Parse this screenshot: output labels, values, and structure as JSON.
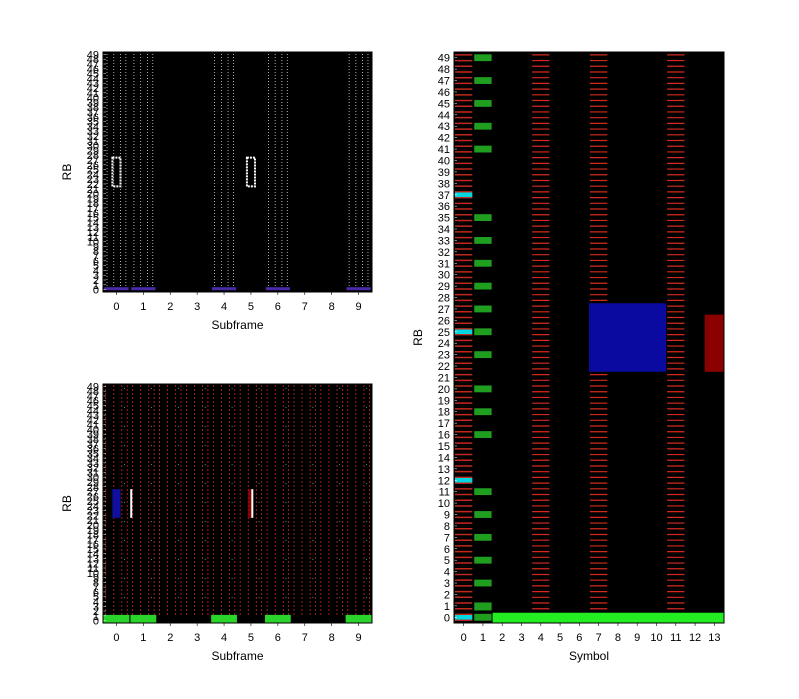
{
  "chart_data": [
    {
      "type": "heatmap",
      "name": "top-left-subframe-grid",
      "title": "",
      "xlabel": "Subframe",
      "ylabel": "RB",
      "x_ticks": [
        "0",
        "1",
        "2",
        "3",
        "4",
        "5",
        "6",
        "7",
        "8",
        "9"
      ],
      "y_ticks": [
        "0",
        "1",
        "2",
        "3",
        "4",
        "5",
        "6",
        "7",
        "8",
        "9",
        "10",
        "11",
        "12",
        "13",
        "14",
        "15",
        "16",
        "17",
        "18",
        "19",
        "20",
        "21",
        "22",
        "23",
        "24",
        "25",
        "26",
        "27",
        "28",
        "29",
        "30",
        "31",
        "32",
        "33",
        "34",
        "35",
        "36",
        "37",
        "38",
        "39",
        "40",
        "41",
        "42",
        "43",
        "44",
        "45",
        "46",
        "47",
        "48",
        "49"
      ],
      "xlim": [
        -0.5,
        9.5
      ],
      "ylim": [
        -0.5,
        49.5
      ],
      "background": "#000000",
      "active_subframes": [
        0,
        1,
        4,
        6,
        9
      ],
      "highlight": {
        "subframes": [
          0,
          5
        ],
        "rb_range": [
          22,
          27
        ],
        "color": "#ffffff"
      },
      "low_rb_marker": {
        "subframes": [
          0,
          1,
          4,
          6,
          9
        ],
        "rb_range": [
          0,
          0
        ],
        "color": "#4a2aa8"
      }
    },
    {
      "type": "heatmap",
      "name": "bottom-left-subframe-grid",
      "title": "",
      "xlabel": "Subframe",
      "ylabel": "RB",
      "x_ticks": [
        "0",
        "1",
        "2",
        "3",
        "4",
        "5",
        "6",
        "7",
        "8",
        "9"
      ],
      "y_ticks": [
        "0",
        "1",
        "2",
        "3",
        "4",
        "5",
        "6",
        "7",
        "8",
        "9",
        "10",
        "11",
        "12",
        "13",
        "14",
        "15",
        "16",
        "17",
        "18",
        "19",
        "20",
        "21",
        "22",
        "23",
        "24",
        "25",
        "26",
        "27",
        "28",
        "29",
        "30",
        "31",
        "32",
        "33",
        "34",
        "35",
        "36",
        "37",
        "38",
        "39",
        "40",
        "41",
        "42",
        "43",
        "44",
        "45",
        "46",
        "47",
        "48",
        "49"
      ],
      "xlim": [
        -0.5,
        9.5
      ],
      "ylim": [
        -0.5,
        49.5
      ],
      "background": "#000000",
      "reference_signal_color": "#c0281e",
      "pdsch_block": {
        "subframe": 0,
        "rb_range": [
          22,
          27
        ],
        "color": "#1010a0"
      },
      "dci_marker": {
        "subframe": 5,
        "rb_range": [
          22,
          27
        ],
        "color": "#8b0000"
      },
      "control_region": {
        "subframes": [
          0,
          1,
          4,
          6,
          9
        ],
        "rb_range": [
          0,
          1
        ],
        "color": "#2bd42b"
      }
    },
    {
      "type": "heatmap",
      "name": "right-symbol-grid",
      "title": "",
      "xlabel": "Symbol",
      "ylabel": "RB",
      "x_ticks": [
        "0",
        "1",
        "2",
        "3",
        "4",
        "5",
        "6",
        "7",
        "8",
        "9",
        "10",
        "11",
        "12",
        "13"
      ],
      "y_ticks": [
        "0",
        "1",
        "2",
        "3",
        "4",
        "5",
        "6",
        "7",
        "8",
        "9",
        "10",
        "11",
        "12",
        "13",
        "14",
        "15",
        "16",
        "17",
        "18",
        "19",
        "20",
        "21",
        "22",
        "23",
        "24",
        "25",
        "26",
        "27",
        "28",
        "29",
        "30",
        "31",
        "32",
        "33",
        "34",
        "35",
        "36",
        "37",
        "38",
        "39",
        "40",
        "41",
        "42",
        "43",
        "44",
        "45",
        "46",
        "47",
        "48",
        "49"
      ],
      "xlim": [
        -0.5,
        13.5
      ],
      "ylim": [
        -0.5,
        49.5
      ],
      "background": "#000000",
      "reference_signal_symbols": [
        4,
        7,
        11
      ],
      "reference_signal_color": "#d42a1e",
      "control_symbol_0_color": "#c0281e",
      "green_markers_symbol_1_rbs": [
        0,
        3,
        5,
        7,
        9,
        11,
        16,
        18,
        20,
        23,
        25,
        27,
        29,
        31,
        33,
        35,
        41,
        43,
        45,
        47,
        49
      ],
      "green_marker_color": "#1f9e1f",
      "cyan_markers_symbol_0_rbs": [
        0,
        12,
        25,
        37
      ],
      "cyan_marker_color": "#00d8e0",
      "bottom_band": {
        "symbols": [
          1,
          13
        ],
        "rb_range": [
          0,
          0
        ],
        "color": "#22ee22"
      },
      "pdsch_block": {
        "symbols": [
          7,
          10
        ],
        "rb_range": [
          22,
          27
        ],
        "color": "#0a0aa0"
      },
      "dci_block": {
        "symbols": [
          13,
          13
        ],
        "rb_range": [
          22,
          26
        ],
        "color": "#8b0000"
      }
    }
  ]
}
